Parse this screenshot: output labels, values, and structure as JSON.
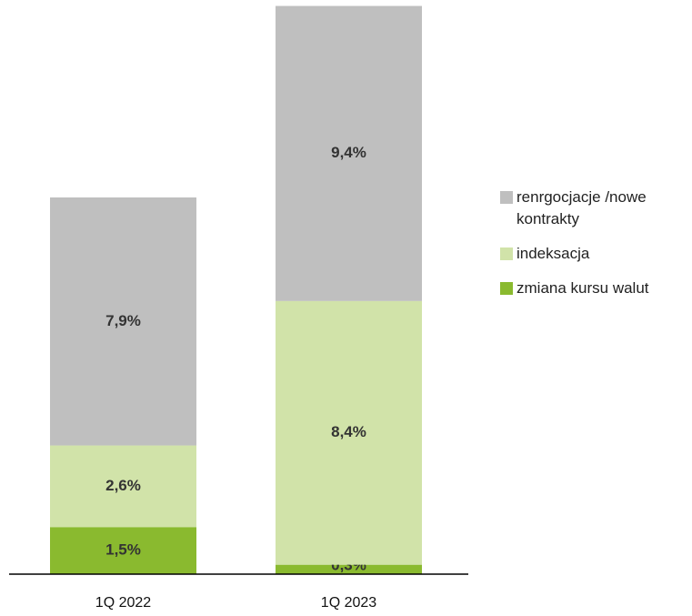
{
  "chart_data": {
    "type": "stacked-bar",
    "categories": [
      "1Q 2022",
      "1Q 2023"
    ],
    "series": [
      {
        "name": "zmiana kursu walut",
        "color": "#8aba2f",
        "values": [
          1.5,
          0.3
        ],
        "value_labels": [
          "1,5%",
          "0,3%"
        ]
      },
      {
        "name": "indeksacja",
        "color": "#d1e3a9",
        "values": [
          2.6,
          8.4
        ],
        "value_labels": [
          "2,6%",
          "8,4%"
        ]
      },
      {
        "name": "renrgocjacje /nowe kontrakty",
        "color": "#bfbfbf",
        "values": [
          7.9,
          9.4
        ],
        "value_labels": [
          "7,9%",
          "9,4%"
        ]
      }
    ],
    "legend": "right"
  }
}
